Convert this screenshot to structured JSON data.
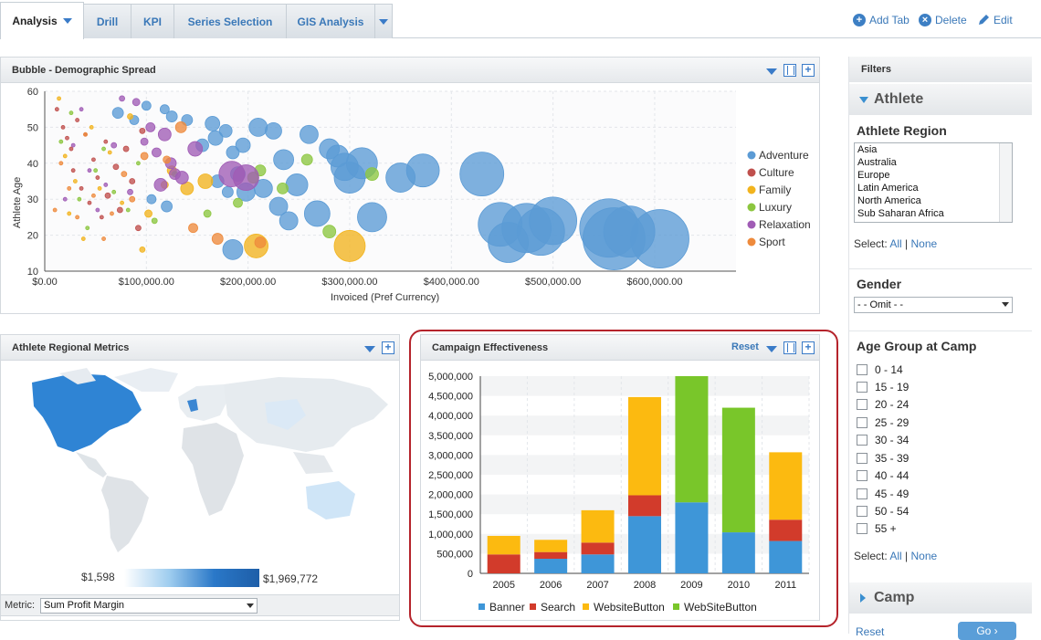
{
  "tabs": {
    "items": [
      {
        "label": "Analysis",
        "active": true
      },
      {
        "label": "Drill"
      },
      {
        "label": "KPI"
      },
      {
        "label": "Series Selection"
      },
      {
        "label": "GIS Analysis"
      }
    ],
    "add_tab": "Add Tab",
    "delete": "Delete",
    "edit": "Edit"
  },
  "bubble_panel": {
    "title": "Bubble - Demographic Spread",
    "xlabel": "Invoiced (Pref Currency)",
    "ylabel": "Athlete Age",
    "x_ticks": [
      "$0.00",
      "$100,000.00",
      "$200,000.00",
      "$300,000.00",
      "$400,000.00",
      "$500,000.00",
      "$600,000.00"
    ],
    "y_ticks": [
      "10",
      "20",
      "30",
      "40",
      "50",
      "60"
    ]
  },
  "map_panel": {
    "title": "Athlete Regional Metrics",
    "legend_min": "$1,598",
    "legend_max": "$1,969,772",
    "metric_label": "Metric:",
    "metric_value": "Sum Profit Margin"
  },
  "campaign_panel": {
    "title": "Campaign Effectiveness",
    "reset": "Reset"
  },
  "filters": {
    "title": "Filters",
    "athlete_section": "Athlete",
    "region_label": "Athlete Region",
    "regions": [
      "Asia",
      "Australia",
      "Europe",
      "Latin America",
      "North America",
      "Sub Saharan Africa"
    ],
    "select_label": "Select:",
    "all": "All",
    "none": "None",
    "gender_label": "Gender",
    "gender_value": "- - Omit - -",
    "age_label": "Age Group at Camp",
    "age_groups": [
      "0 - 14",
      "15 - 19",
      "20 - 24",
      "25 - 29",
      "30 - 34",
      "35 - 39",
      "40 - 44",
      "45 - 49",
      "50 - 54",
      "55 +"
    ],
    "camp_section": "Camp",
    "reset": "Reset",
    "go": "Go"
  },
  "colors": {
    "adventure": "#5b9bd5",
    "culture": "#c0504d",
    "family": "#f2b41e",
    "luxury": "#8cc63f",
    "relaxation": "#a05cb5",
    "sport": "#ee8a3c",
    "banner": "#3e96d8",
    "search": "#d23b2b",
    "website": "#fcba10",
    "website2": "#79c62a",
    "accent": "#3a78b8",
    "frame": "#b5232b"
  },
  "chart_data": [
    {
      "type": "scatter",
      "title": "Bubble - Demographic Spread",
      "xlabel": "Invoiced (Pref Currency)",
      "ylabel": "Athlete Age",
      "xlim": [
        0,
        680000
      ],
      "ylim": [
        10,
        60
      ],
      "grid": true,
      "legend": "right",
      "series": [
        {
          "name": "Adventure",
          "points": [
            [
              72000,
              54,
              6
            ],
            [
              88000,
              52,
              5
            ],
            [
              100000,
              56,
              5
            ],
            [
              118000,
              55,
              5
            ],
            [
              125000,
              53,
              6
            ],
            [
              140000,
              52,
              6
            ],
            [
              155000,
              45,
              7
            ],
            [
              165000,
              51,
              8
            ],
            [
              168000,
              47,
              8
            ],
            [
              178000,
              49,
              7
            ],
            [
              185000,
              43,
              7
            ],
            [
              190000,
              37,
              8
            ],
            [
              195000,
              45,
              8
            ],
            [
              198000,
              32,
              10
            ],
            [
              210000,
              50,
              10
            ],
            [
              215000,
              33,
              10
            ],
            [
              225000,
              49,
              9
            ],
            [
              230000,
              28,
              10
            ],
            [
              235000,
              41,
              11
            ],
            [
              240000,
              24,
              10
            ],
            [
              248000,
              34,
              12
            ],
            [
              260000,
              48,
              10
            ],
            [
              268000,
              26,
              14
            ],
            [
              280000,
              44,
              11
            ],
            [
              288000,
              42,
              12
            ],
            [
              295000,
              39,
              15
            ],
            [
              300000,
              36,
              17
            ],
            [
              312000,
              40,
              17
            ],
            [
              322000,
              25,
              16
            ],
            [
              350000,
              36,
              16
            ],
            [
              372000,
              38,
              18
            ],
            [
              430000,
              37,
              24
            ],
            [
              448000,
              23,
              24
            ],
            [
              456000,
              18,
              22
            ],
            [
              474000,
              22,
              27
            ],
            [
              488000,
              21,
              26
            ],
            [
              500000,
              24,
              26
            ],
            [
              555000,
              22,
              32
            ],
            [
              560000,
              19,
              34
            ],
            [
              605000,
              19,
              32
            ],
            [
              575000,
              21,
              28
            ],
            [
              185000,
              16,
              11
            ],
            [
              170000,
              35,
              7
            ],
            [
              105000,
              30,
              5
            ],
            [
              120000,
              28,
              6
            ],
            [
              180000,
              32,
              6
            ]
          ]
        },
        {
          "name": "Culture",
          "points": [
            [
              12000,
              55,
              2
            ],
            [
              18000,
              50,
              2
            ],
            [
              22000,
              47,
              2
            ],
            [
              26000,
              44,
              2
            ],
            [
              28000,
              38,
              2
            ],
            [
              32000,
              52,
              2
            ],
            [
              36000,
              33,
              2
            ],
            [
              40000,
              48,
              2
            ],
            [
              44000,
              29,
              2
            ],
            [
              48000,
              41,
              2
            ],
            [
              52000,
              36,
              2
            ],
            [
              56000,
              25,
              2
            ],
            [
              60000,
              46,
              2
            ],
            [
              62000,
              31,
              3
            ],
            [
              70000,
              39,
              3
            ],
            [
              74000,
              27,
              3
            ],
            [
              80000,
              44,
              3
            ],
            [
              86000,
              35,
              3
            ],
            [
              92000,
              22,
              3
            ],
            [
              96000,
              49,
              3
            ]
          ]
        },
        {
          "name": "Family",
          "points": [
            [
              14000,
              58,
              2
            ],
            [
              20000,
              42,
              2
            ],
            [
              24000,
              26,
              2
            ],
            [
              30000,
              35,
              2
            ],
            [
              38000,
              19,
              2
            ],
            [
              46000,
              50,
              2
            ],
            [
              54000,
              33,
              2
            ],
            [
              64000,
              43,
              2
            ],
            [
              76000,
              29,
              2
            ],
            [
              84000,
              53,
              3
            ],
            [
              96000,
              16,
              3
            ],
            [
              118000,
              34,
              4
            ],
            [
              125000,
              38,
              5
            ],
            [
              140000,
              33,
              7
            ],
            [
              158000,
              35,
              8
            ],
            [
              208000,
              17,
              13
            ],
            [
              300000,
              17,
              17
            ],
            [
              102000,
              26,
              4
            ]
          ]
        },
        {
          "name": "Luxury",
          "points": [
            [
              16000,
              46,
              2
            ],
            [
              26000,
              54,
              2
            ],
            [
              34000,
              30,
              2
            ],
            [
              42000,
              22,
              2
            ],
            [
              50000,
              38,
              2
            ],
            [
              58000,
              44,
              2
            ],
            [
              68000,
              32,
              2
            ],
            [
              82000,
              27,
              2
            ],
            [
              92000,
              40,
              2
            ],
            [
              108000,
              24,
              3
            ],
            [
              128000,
              37,
              3
            ],
            [
              160000,
              26,
              4
            ],
            [
              190000,
              29,
              5
            ],
            [
              205000,
              36,
              6
            ],
            [
              212000,
              38,
              6
            ],
            [
              234000,
              33,
              6
            ],
            [
              258000,
              41,
              6
            ],
            [
              280000,
              21,
              7
            ],
            [
              322000,
              37,
              7
            ]
          ]
        },
        {
          "name": "Relaxation",
          "points": [
            [
              20000,
              30,
              2
            ],
            [
              28000,
              45,
              2
            ],
            [
              36000,
              55,
              2
            ],
            [
              44000,
              38,
              2
            ],
            [
              52000,
              27,
              2
            ],
            [
              60000,
              34,
              2
            ],
            [
              68000,
              45,
              3
            ],
            [
              76000,
              58,
              3
            ],
            [
              84000,
              32,
              3
            ],
            [
              90000,
              57,
              4
            ],
            [
              98000,
              46,
              4
            ],
            [
              104000,
              50,
              5
            ],
            [
              110000,
              43,
              5
            ],
            [
              114000,
              34,
              7
            ],
            [
              118000,
              48,
              7
            ],
            [
              124000,
              40,
              6
            ],
            [
              128000,
              37,
              6
            ],
            [
              135000,
              36,
              7
            ],
            [
              148000,
              44,
              8
            ],
            [
              184000,
              37,
              14
            ],
            [
              198000,
              36,
              14
            ]
          ]
        },
        {
          "name": "Sport",
          "points": [
            [
              10000,
              27,
              2
            ],
            [
              16000,
              40,
              2
            ],
            [
              24000,
              33,
              2
            ],
            [
              32000,
              25,
              2
            ],
            [
              40000,
              48,
              2
            ],
            [
              48000,
              31,
              2
            ],
            [
              58000,
              19,
              2
            ],
            [
              66000,
              26,
              2
            ],
            [
              78000,
              37,
              3
            ],
            [
              86000,
              30,
              3
            ],
            [
              98000,
              42,
              4
            ],
            [
              120000,
              41,
              4
            ],
            [
              134000,
              50,
              6
            ],
            [
              146000,
              22,
              5
            ],
            [
              170000,
              19,
              6
            ],
            [
              212000,
              18,
              6
            ]
          ]
        }
      ]
    },
    {
      "type": "bar",
      "title": "Campaign Effectiveness",
      "stacked": true,
      "categories": [
        "2005",
        "2006",
        "2007",
        "2008",
        "2009",
        "2010",
        "2011"
      ],
      "ylim": [
        0,
        5000000
      ],
      "y_ticks": [
        "0",
        "500,000",
        "1,000,000",
        "1,500,000",
        "2,000,000",
        "2,500,000",
        "3,000,000",
        "3,500,000",
        "4,000,000",
        "4,500,000",
        "5,000,000"
      ],
      "legend": "bottom",
      "series": [
        {
          "name": "Banner",
          "values": [
            0,
            370000,
            480000,
            1450000,
            1800000,
            1040000,
            820000
          ]
        },
        {
          "name": "Search",
          "values": [
            480000,
            170000,
            300000,
            530000,
            0,
            0,
            540000
          ]
        },
        {
          "name": "WebsiteButton",
          "values": [
            470000,
            310000,
            820000,
            2490000,
            0,
            0,
            1710000
          ]
        },
        {
          "name": "WebSiteButton",
          "values": [
            0,
            0,
            0,
            0,
            3200000,
            3160000,
            0
          ]
        }
      ]
    }
  ]
}
